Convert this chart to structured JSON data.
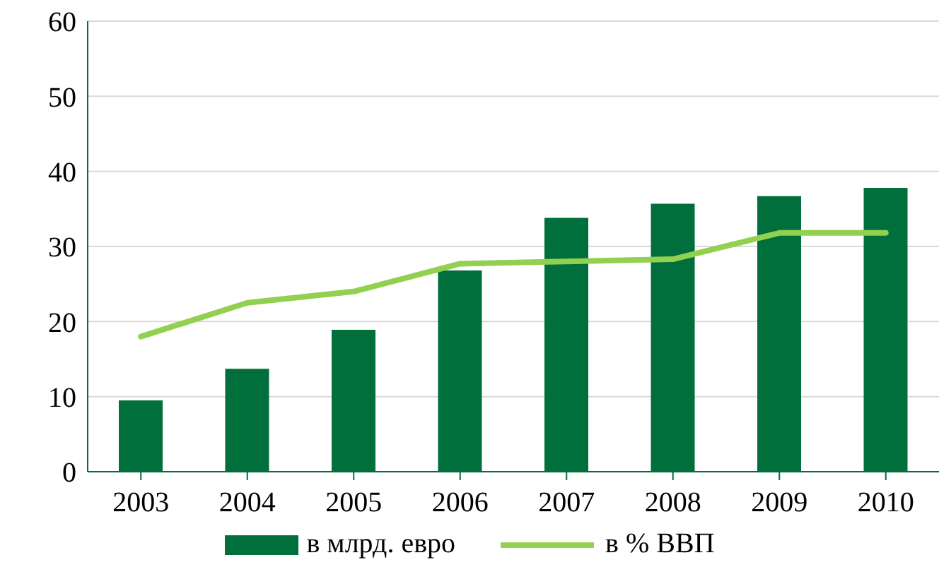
{
  "chart_data": {
    "type": "bar",
    "categories": [
      "2003",
      "2004",
      "2005",
      "2006",
      "2007",
      "2008",
      "2009",
      "2010"
    ],
    "series": [
      {
        "name": "в млрд. евро",
        "color": "#006f3c",
        "values": [
          9.5,
          13.7,
          18.9,
          26.8,
          33.8,
          35.7,
          36.7,
          37.8
        ]
      },
      {
        "name": "в % ВВП",
        "type": "line",
        "color": "#92d050",
        "values": [
          18.0,
          22.5,
          24.0,
          27.7,
          28.0,
          28.3,
          31.8,
          31.8
        ]
      }
    ],
    "ylim": [
      0,
      60
    ],
    "yticks": [
      0,
      10,
      20,
      30,
      40,
      50,
      60
    ],
    "grid": "y",
    "legend": "bottom",
    "marker": "none",
    "line_style": "solid"
  }
}
